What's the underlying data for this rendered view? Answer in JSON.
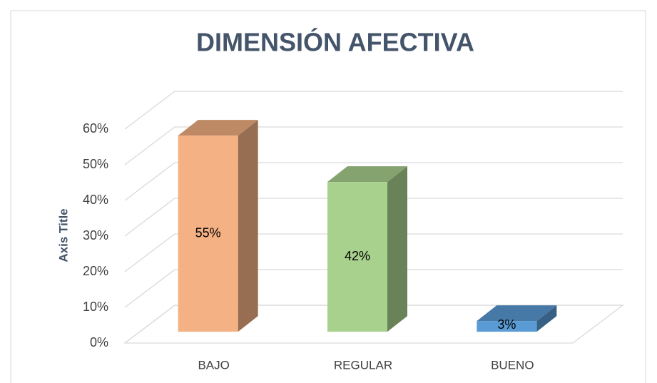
{
  "chart_data": {
    "type": "bar3d",
    "title": "DIMENSIÓN AFECTIVA",
    "y_axis_label": "Axis Title",
    "categories": [
      "BAJO",
      "REGULAR",
      "BUENO"
    ],
    "values": [
      55,
      42,
      3
    ],
    "value_labels": [
      "55%",
      "42%",
      "3%"
    ],
    "colors": [
      "#f4b183",
      "#a9d18e",
      "#5b9bd5"
    ],
    "ylim": [
      0,
      60
    ],
    "yticks": [
      {
        "value": 0,
        "label": "0%"
      },
      {
        "value": 10,
        "label": "10%"
      },
      {
        "value": 20,
        "label": "20%"
      },
      {
        "value": 30,
        "label": "30%"
      },
      {
        "value": 40,
        "label": "40%"
      },
      {
        "value": 50,
        "label": "50%"
      },
      {
        "value": 60,
        "label": "60%"
      }
    ],
    "grid": true
  }
}
